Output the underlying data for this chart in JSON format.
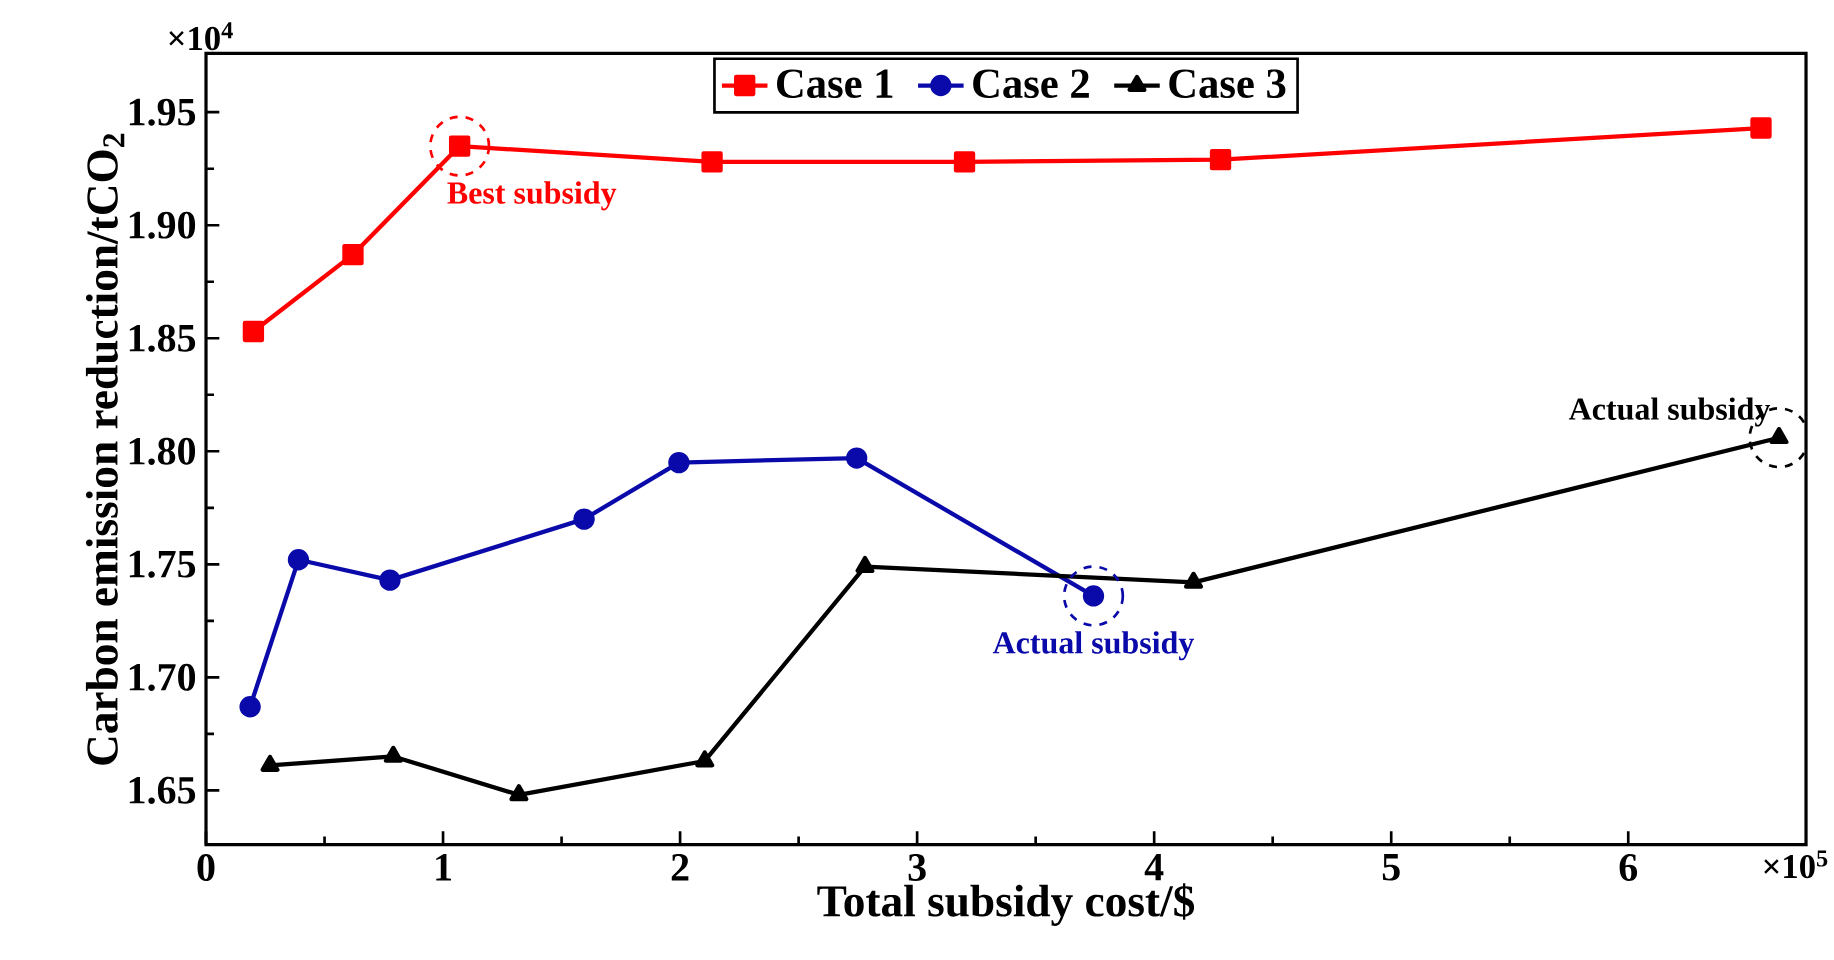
{
  "chart_data": {
    "type": "line",
    "xlabel": "Total subsidy cost/$",
    "ylabel": "Carbon emission reduction/tCO$_{2}$",
    "xlim": [
      0,
      6.75
    ],
    "ylim": [
      1.626,
      1.976
    ],
    "xticks": [
      0,
      1,
      2,
      3,
      4,
      5,
      6
    ],
    "yticks": [
      {
        "value": 1.65,
        "label": "1.65"
      },
      {
        "value": 1.7,
        "label": "1.70"
      },
      {
        "value": 1.75,
        "label": "1.75"
      },
      {
        "value": 1.8,
        "label": "1.80"
      },
      {
        "value": 1.85,
        "label": "1.85"
      },
      {
        "value": 1.9,
        "label": "1.90"
      },
      {
        "value": 1.95,
        "label": "1.95"
      }
    ],
    "legend": "top",
    "grid": false,
    "series": [
      {
        "name": "Case 1",
        "color": "#ff0000",
        "marker": "square",
        "x": [
          0.2,
          0.62,
          1.07,
          2.135,
          3.2,
          4.28,
          6.56
        ],
        "values": [
          1.853,
          1.887,
          1.935,
          1.928,
          1.928,
          1.929,
          1.943
        ]
      },
      {
        "name": "Case 2",
        "color": "#0a0aaa",
        "marker": "circle",
        "x": [
          0.186,
          0.39,
          0.776,
          1.595,
          1.995,
          2.745,
          3.744
        ],
        "values": [
          1.687,
          1.752,
          1.743,
          1.77,
          1.795,
          1.797,
          1.736
        ]
      },
      {
        "name": "Case 3",
        "color": "#000000",
        "marker": "triangle",
        "x": [
          0.27,
          0.79,
          1.32,
          2.104,
          2.78,
          4.166,
          6.636
        ],
        "values": [
          1.661,
          1.665,
          1.648,
          1.663,
          1.749,
          1.742,
          1.806
        ]
      }
    ],
    "annotations": [
      {
        "text": "Best subsidy",
        "x": 1.07,
        "y": 1.935
      },
      {
        "text": "Actual subsidy",
        "x": 3.744,
        "y": 1.736
      },
      {
        "text": "Actual subsidy",
        "x": 6.636,
        "y": 1.806
      },
      "×10$^{4}$",
      "×10$^{5}$"
    ]
  }
}
